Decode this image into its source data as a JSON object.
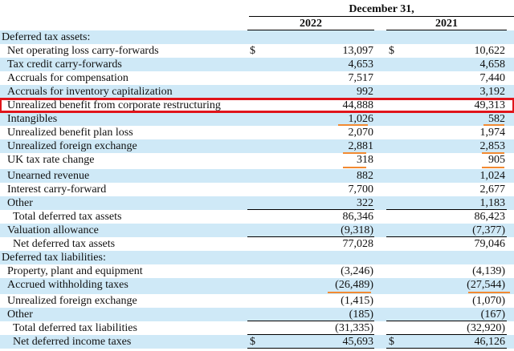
{
  "header": {
    "period": "December 31,",
    "year_2022": "2022",
    "year_2021": "2021"
  },
  "rows": [
    {
      "label": "Deferred tax assets:"
    },
    {
      "label": "Net operating loss carry-forwards",
      "cur_2022": "$",
      "v2022": "13,097",
      "cur_2021": "$",
      "v2021": "10,622"
    },
    {
      "label": "Tax credit carry-forwards",
      "v2022": "4,653",
      "v2021": "4,658"
    },
    {
      "label": "Accruals for compensation",
      "v2022": "7,517",
      "v2021": "7,440"
    },
    {
      "label": "Accruals for inventory capitalization",
      "v2022": "992",
      "v2021": "3,192"
    },
    {
      "label": "Unrealized benefit from corporate restructuring",
      "v2022": "44,888",
      "v2021": "49,313"
    },
    {
      "label": "Intangibles",
      "v2022": "1,026",
      "v2021": "582"
    },
    {
      "label": "Unrealized benefit plan loss",
      "v2022": "2,070",
      "v2021": "1,974"
    },
    {
      "label": "Unrealized foreign exchange",
      "v2022": "2,881",
      "v2021": "2,853"
    },
    {
      "label": "UK tax rate change",
      "v2022": "318",
      "v2021": "905"
    },
    {
      "label": "Unearned revenue",
      "v2022": "882",
      "v2021": "1,024"
    },
    {
      "label": "Interest carry-forward",
      "v2022": "7,700",
      "v2021": "2,677"
    },
    {
      "label": "Other",
      "v2022": "322",
      "v2021": "1,183"
    },
    {
      "label": "Total deferred tax assets",
      "v2022": "86,346",
      "v2021": "86,423"
    },
    {
      "label": "Valuation allowance",
      "v2022": "(9,318)",
      "v2021": "(7,377)"
    },
    {
      "label": "Net deferred tax assets",
      "v2022": "77,028",
      "v2021": "79,046"
    },
    {
      "label": "Deferred tax liabilities:"
    },
    {
      "label": "Property, plant and equipment",
      "v2022": "(3,246)",
      "v2021": "(4,139)"
    },
    {
      "label": "Accrued withholding taxes",
      "v2022": "(26,489)",
      "v2021": "(27,544)"
    },
    {
      "label": "Unrealized foreign exchange",
      "v2022": "(1,415)",
      "v2021": "(1,070)"
    },
    {
      "label": "Other",
      "v2022": "(185)",
      "v2021": "(167)"
    },
    {
      "label": "Total deferred tax liabilities",
      "v2022": "(31,335)",
      "v2021": "(32,920)"
    },
    {
      "label": "Net deferred income taxes",
      "cur_2022": "$",
      "v2022": "45,693",
      "cur_2021": "$",
      "v2021": "46,126"
    }
  ],
  "highlight_color": "#e0151b",
  "underline_color": "#f28a32",
  "shade_color": "#cfe9f7"
}
